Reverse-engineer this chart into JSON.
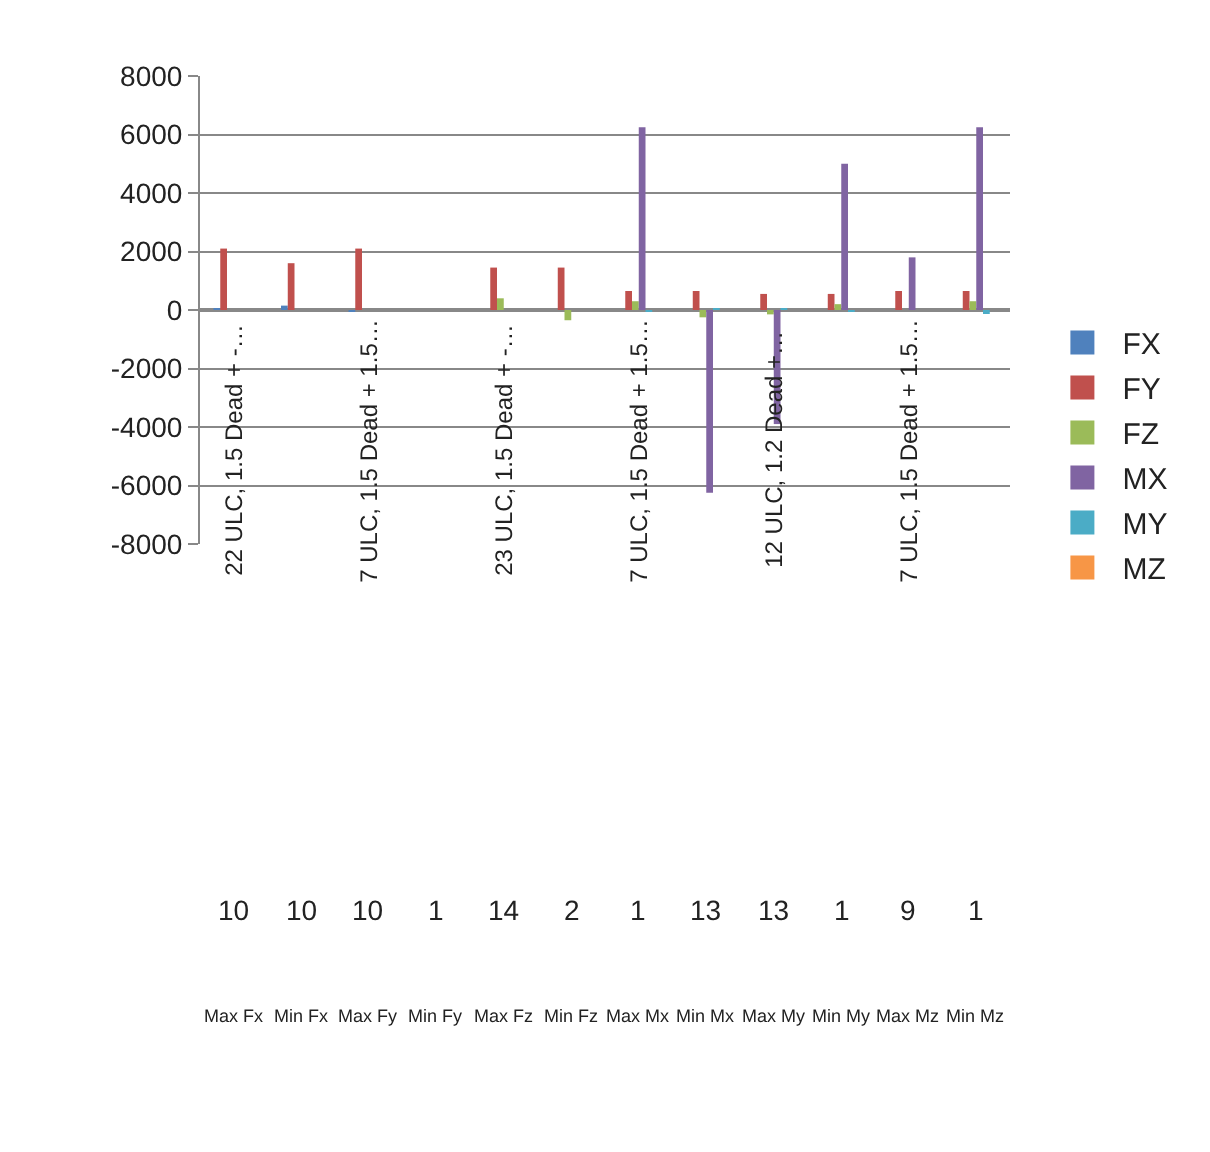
{
  "chart_data": {
    "type": "bar",
    "categories": [
      "Max Fx\n10\n22 ULC, 1.5 Dead + -…",
      "Min Fx\n10",
      "Max Fy\n10\n7 ULC, 1.5 Dead + 1.5…",
      "Min Fy\n1",
      "Max Fz\n14\n23 ULC, 1.5 Dead + -…",
      "Min Fz\n2",
      "Max Mx\n1\n7 ULC, 1.5 Dead + 1.5…",
      "Min Mx\n13",
      "Max My\n13\n12 ULC, 1.2 Dead +…",
      "Min My\n1",
      "Max Mz\n9\n7 ULC, 1.5 Dead + 1.5…",
      "Min Mz\n1"
    ],
    "series": [
      {
        "name": "FX",
        "color": "#4f81bd",
        "values": [
          50,
          150,
          -50,
          0,
          0,
          0,
          0,
          0,
          0,
          0,
          0,
          0
        ]
      },
      {
        "name": "FY",
        "color": "#c0504d",
        "values": [
          2100,
          1600,
          2100,
          0,
          1450,
          1450,
          650,
          650,
          550,
          550,
          650,
          650
        ]
      },
      {
        "name": "FZ",
        "color": "#9bbb59",
        "values": [
          0,
          0,
          0,
          0,
          400,
          -350,
          300,
          -250,
          -150,
          200,
          0,
          300
        ]
      },
      {
        "name": "MX",
        "color": "#8064a2",
        "values": [
          0,
          0,
          0,
          0,
          0,
          0,
          6250,
          -6250,
          -3900,
          5000,
          1800,
          6250
        ]
      },
      {
        "name": "MY",
        "color": "#4bacc6",
        "values": [
          0,
          0,
          0,
          0,
          0,
          0,
          -50,
          50,
          50,
          -50,
          0,
          -100
        ]
      },
      {
        "name": "MZ",
        "color": "#f79646",
        "values": [
          0,
          0,
          0,
          0,
          0,
          0,
          0,
          0,
          0,
          0,
          0,
          0
        ]
      }
    ],
    "ylim": [
      -8000,
      8000
    ],
    "yticks": [
      -8000,
      -6000,
      -4000,
      -2000,
      0,
      2000,
      4000,
      6000,
      8000
    ],
    "grid": "y",
    "legend": "right"
  }
}
